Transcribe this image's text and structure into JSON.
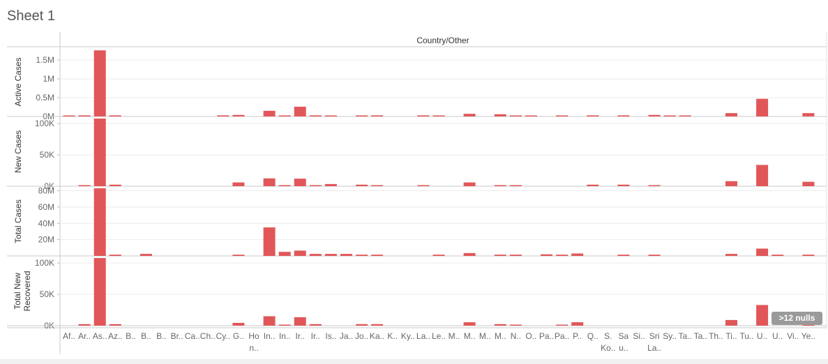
{
  "sheet": {
    "title": "Sheet 1",
    "nulls_indicator": ">12 nulls"
  },
  "accent": "#e15759",
  "chart_data": {
    "type": "bar",
    "header": "Country/Other",
    "categories": [
      [
        "Af.."
      ],
      [
        "Ar.."
      ],
      [
        "As.."
      ],
      [
        "Az.."
      ],
      [
        "B.."
      ],
      [
        "B.."
      ],
      [
        "B.."
      ],
      [
        "Br.."
      ],
      [
        "Ca.."
      ],
      [
        "Ch.."
      ],
      [
        "Cy.."
      ],
      [
        "G.."
      ],
      [
        "Ho",
        "n.."
      ],
      [
        "In.."
      ],
      [
        "In.."
      ],
      [
        "Ir.."
      ],
      [
        "Ir.."
      ],
      [
        "Is.."
      ],
      [
        "Ja.."
      ],
      [
        "Jo.."
      ],
      [
        "Ka.."
      ],
      [
        "K.."
      ],
      [
        "Ky.."
      ],
      [
        "La.."
      ],
      [
        "Le.."
      ],
      [
        "M.."
      ],
      [
        "M.."
      ],
      [
        "M.."
      ],
      [
        "M.."
      ],
      [
        "N.."
      ],
      [
        "O.."
      ],
      [
        "Pa.."
      ],
      [
        "Pa.."
      ],
      [
        "P.."
      ],
      [
        "Q.."
      ],
      [
        "S.",
        "Ko.."
      ],
      [
        "Sa",
        "u.."
      ],
      [
        "Si.."
      ],
      [
        "Sri",
        "La.."
      ],
      [
        "Sy.."
      ],
      [
        "Ta.."
      ],
      [
        "Ta.."
      ],
      [
        "Th.."
      ],
      [
        "Ti.."
      ],
      [
        "Tu.."
      ],
      [
        "U.."
      ],
      [
        "U.."
      ],
      [
        "Vi.."
      ],
      [
        "Ye.."
      ]
    ],
    "series": [
      {
        "name": "Active Cases",
        "ylim": [
          0,
          1800000
        ],
        "ticks": [
          {
            "v": 0,
            "label": "0M"
          },
          {
            "v": 500000,
            "label": "0.5M"
          },
          {
            "v": 1000000,
            "label": "1M"
          },
          {
            "v": 1500000,
            "label": "1.5M"
          }
        ],
        "values": [
          20000,
          30000,
          1760000,
          30000,
          0,
          0,
          0,
          0,
          0,
          0,
          30000,
          40000,
          0,
          150000,
          20000,
          260000,
          30000,
          15000,
          0,
          15000,
          30000,
          0,
          0,
          30000,
          20000,
          0,
          70000,
          0,
          60000,
          20000,
          20000,
          0,
          15000,
          0,
          30000,
          0,
          30000,
          0,
          40000,
          20000,
          20000,
          0,
          0,
          90000,
          0,
          470000,
          0,
          0,
          90000
        ]
      },
      {
        "name": "New Cases",
        "ylim": [
          0,
          108000
        ],
        "ticks": [
          {
            "v": 0,
            "label": "0K"
          },
          {
            "v": 50000,
            "label": "50K"
          },
          {
            "v": 100000,
            "label": "100K"
          }
        ],
        "values": [
          0,
          1500,
          108000,
          2500,
          0,
          0,
          0,
          0,
          0,
          0,
          0,
          6000,
          0,
          12500,
          1500,
          12000,
          1500,
          3500,
          0,
          2500,
          1500,
          0,
          0,
          1500,
          0,
          0,
          6000,
          0,
          1000,
          1500,
          0,
          0,
          0,
          0,
          2500,
          0,
          2500,
          0,
          1500,
          0,
          0,
          0,
          0,
          8000,
          0,
          34000,
          0,
          0,
          7000
        ]
      },
      {
        "name": "Total Cases",
        "ylim": [
          0,
          83000000
        ],
        "ticks": [
          {
            "v": 20000000,
            "label": "20M"
          },
          {
            "v": 40000000,
            "label": "40M"
          },
          {
            "v": 60000000,
            "label": "60M"
          },
          {
            "v": 80000000,
            "label": "80M"
          }
        ],
        "values": [
          0,
          0,
          83000000,
          1500000,
          0,
          2500000,
          0,
          0,
          0,
          0,
          0,
          1500000,
          0,
          35000000,
          5000000,
          6500000,
          2500000,
          2500000,
          2500000,
          1500000,
          1500000,
          0,
          0,
          0,
          1500000,
          0,
          3500000,
          0,
          1500000,
          1500000,
          0,
          2000000,
          1500000,
          3000000,
          0,
          0,
          1500000,
          0,
          1500000,
          0,
          0,
          0,
          0,
          2500000,
          0,
          9000000,
          1500000,
          0,
          1500000
        ]
      },
      {
        "name": "Total New Recovered",
        "ylim": [
          0,
          108000
        ],
        "ticks": [
          {
            "v": 0,
            "label": "0K"
          },
          {
            "v": 50000,
            "label": "50K"
          },
          {
            "v": 100000,
            "label": "100K"
          }
        ],
        "values": [
          0,
          2500,
          108000,
          2500,
          0,
          0,
          0,
          0,
          0,
          0,
          0,
          4500,
          0,
          15000,
          1500,
          13500,
          2500,
          0,
          0,
          2500,
          2500,
          0,
          0,
          0,
          0,
          0,
          5500,
          0,
          2500,
          1500,
          0,
          0,
          1500,
          5500,
          0,
          0,
          0,
          0,
          0,
          0,
          0,
          0,
          0,
          9000,
          0,
          33000,
          0,
          0,
          3500
        ]
      }
    ],
    "grid": "horizontal light"
  }
}
